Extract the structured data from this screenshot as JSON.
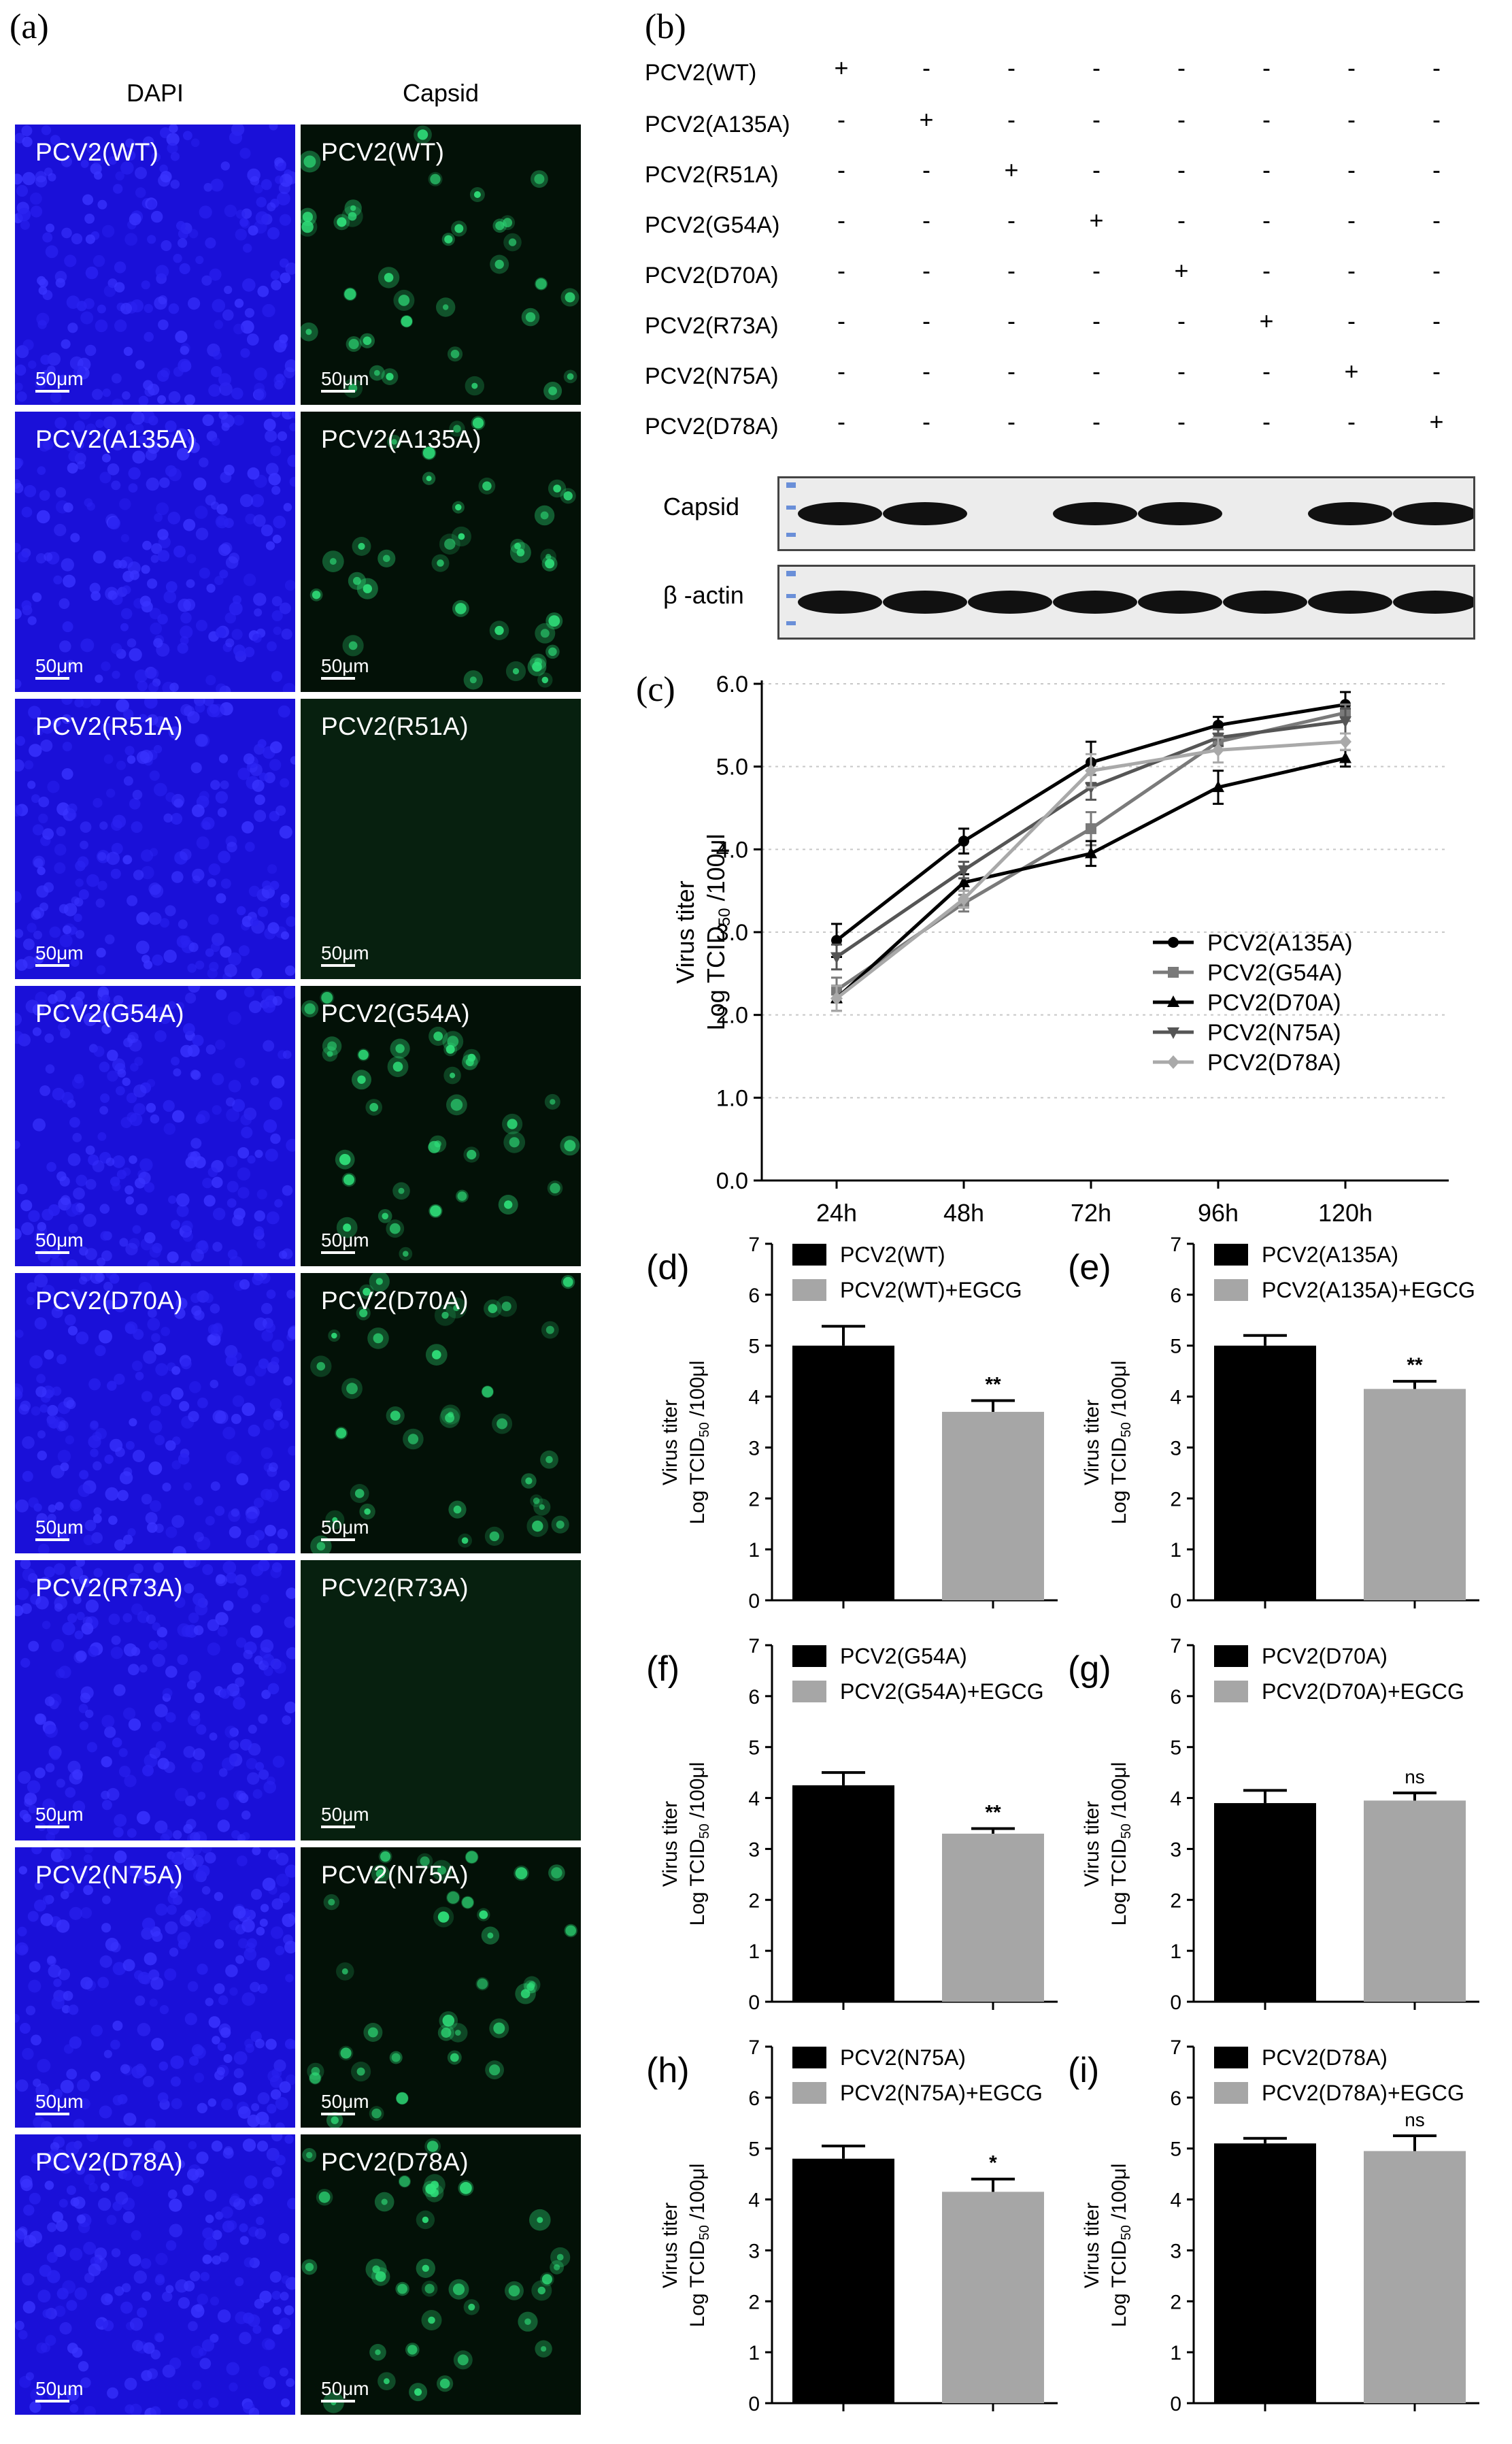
{
  "panel_a": {
    "label": "(a)",
    "col_headers": [
      "DAPI",
      "Capsid"
    ],
    "rows": [
      {
        "name": "PCV2(WT)",
        "capsid_signal": "bright"
      },
      {
        "name": "PCV2(A135A)",
        "capsid_signal": "bright"
      },
      {
        "name": "PCV2(R51A)",
        "capsid_signal": "none"
      },
      {
        "name": "PCV2(G54A)",
        "capsid_signal": "bright"
      },
      {
        "name": "PCV2(D70A)",
        "capsid_signal": "bright"
      },
      {
        "name": "PCV2(R73A)",
        "capsid_signal": "none"
      },
      {
        "name": "PCV2(N75A)",
        "capsid_signal": "bright"
      },
      {
        "name": "PCV2(D78A)",
        "capsid_signal": "bright"
      }
    ],
    "scale_bar": "50μm",
    "colors": {
      "dapi": "#1a10d8",
      "capsid": "#2fe07a",
      "empty": "#07200f"
    }
  },
  "panel_b": {
    "label": "(b)",
    "conditions": [
      "PCV2(WT)",
      "PCV2(A135A)",
      "PCV2(R51A)",
      "PCV2(G54A)",
      "PCV2(D70A)",
      "PCV2(R73A)",
      "PCV2(N75A)",
      "PCV2(D78A)"
    ],
    "plus": "+",
    "minus": "-",
    "blots": [
      {
        "label": "Capsid",
        "bands": [
          1,
          1,
          0,
          1,
          1,
          0,
          1,
          1
        ]
      },
      {
        "label": "β -actin",
        "bands": [
          1,
          1,
          1,
          1,
          1,
          1,
          1,
          1
        ]
      }
    ]
  },
  "panel_c": {
    "label": "(c)",
    "ylabel_line1": "Virus titer",
    "ylabel_line2": "Log TCID",
    "ylabel_sub": "50",
    "ylabel_tail": " /100μl",
    "chart_data": {
      "type": "line",
      "x": [
        "24h",
        "48h",
        "72h",
        "96h",
        "120h"
      ],
      "ylim": [
        0,
        6
      ],
      "yticks": [
        "0.0",
        "1.0",
        "2.0",
        "3.0",
        "4.0",
        "5.0",
        "6.0"
      ],
      "grid": true,
      "legend_position": "bottom-right",
      "series": [
        {
          "name": "PCV2(A135A)",
          "values": [
            2.9,
            4.1,
            5.05,
            5.5,
            5.75
          ],
          "errors": [
            0.2,
            0.15,
            0.25,
            0.1,
            0.15
          ],
          "color": "#000000",
          "marker": "circle"
        },
        {
          "name": "PCV2(G54A)",
          "values": [
            2.3,
            3.35,
            4.25,
            5.3,
            5.65
          ],
          "errors": [
            0.15,
            0.1,
            0.2,
            0.1,
            0.1
          ],
          "color": "#7a7a7a",
          "marker": "square"
        },
        {
          "name": "PCV2(D70A)",
          "values": [
            2.2,
            3.6,
            3.95,
            4.75,
            5.1
          ],
          "errors": [
            0.15,
            0.1,
            0.15,
            0.2,
            0.1
          ],
          "color": "#000000",
          "marker": "triangle"
        },
        {
          "name": "PCV2(N75A)",
          "values": [
            2.7,
            3.75,
            4.75,
            5.35,
            5.55
          ],
          "errors": [
            0.15,
            0.1,
            0.15,
            0.1,
            0.15
          ],
          "color": "#555555",
          "marker": "triangle-down"
        },
        {
          "name": "PCV2(D78A)",
          "values": [
            2.2,
            3.4,
            4.95,
            5.2,
            5.3
          ],
          "errors": [
            0.15,
            0.1,
            0.2,
            0.15,
            0.1
          ],
          "color": "#a9a9a9",
          "marker": "diamond"
        }
      ]
    }
  },
  "bar_panels": [
    {
      "label": "(d)",
      "series": [
        "PCV2(WT)",
        "PCV2(WT)+EGCG"
      ],
      "values": [
        5.0,
        3.7
      ],
      "errors": [
        0.38,
        0.22
      ],
      "sig": "**"
    },
    {
      "label": "(e)",
      "series": [
        "PCV2(A135A)",
        "PCV2(A135A)+EGCG"
      ],
      "values": [
        5.0,
        4.15
      ],
      "errors": [
        0.2,
        0.15
      ],
      "sig": "**"
    },
    {
      "label": "(f)",
      "series": [
        "PCV2(G54A)",
        "PCV2(G54A)+EGCG"
      ],
      "values": [
        4.25,
        3.3
      ],
      "errors": [
        0.25,
        0.1
      ],
      "sig": "**"
    },
    {
      "label": "(g)",
      "series": [
        "PCV2(D70A)",
        "PCV2(D70A)+EGCG"
      ],
      "values": [
        3.9,
        3.95
      ],
      "errors": [
        0.25,
        0.15
      ],
      "sig": "ns"
    },
    {
      "label": "(h)",
      "series": [
        "PCV2(N75A)",
        "PCV2(N75A)+EGCG"
      ],
      "values": [
        4.8,
        4.15
      ],
      "errors": [
        0.25,
        0.25
      ],
      "sig": "*"
    },
    {
      "label": "(i)",
      "series": [
        "PCV2(D78A)",
        "PCV2(D78A)+EGCG"
      ],
      "values": [
        5.1,
        4.95
      ],
      "errors": [
        0.1,
        0.3
      ],
      "sig": "ns"
    }
  ],
  "bar_chart_common": {
    "chart_data": {
      "type": "bar",
      "ylim": [
        0,
        7
      ],
      "yticks": [
        "0",
        "1",
        "2",
        "3",
        "4",
        "5",
        "6",
        "7"
      ]
    },
    "ylabel_line1": "Virus titer",
    "ylabel_line2": "Log TCID",
    "ylabel_sub": "50",
    "ylabel_tail": " /100μl",
    "colors": [
      "#000000",
      "#a6a6a6"
    ]
  }
}
